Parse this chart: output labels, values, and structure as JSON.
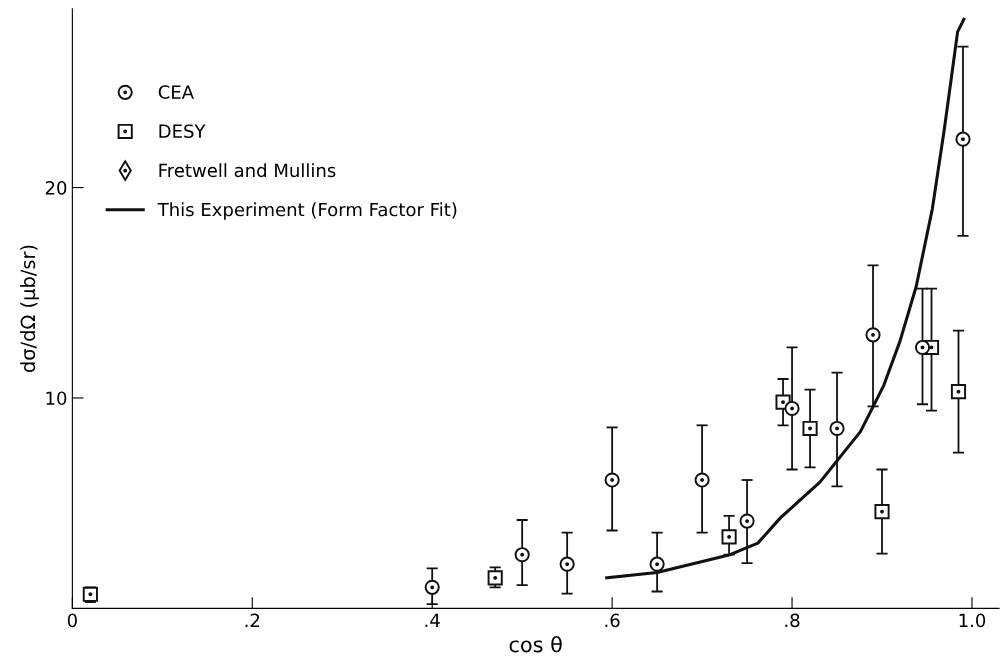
{
  "chart_data": {
    "type": "scatter",
    "xlabel": "cos θ",
    "ylabel": "dσ/dΩ (μb/sr)",
    "xlim": [
      0,
      1.03
    ],
    "ylim": [
      0,
      28.5
    ],
    "xticks": [
      0,
      {
        "value": 0.2,
        "label": ".2"
      },
      {
        "value": 0.4,
        "label": ".4"
      },
      {
        "value": 0.6,
        "label": ".6"
      },
      {
        "value": 0.8,
        "label": ".8"
      },
      {
        "value": 1.0,
        "label": "1.0"
      }
    ],
    "yticks": [
      10,
      20
    ],
    "grid": false,
    "legend": "top left",
    "series": [
      {
        "name": "CEA",
        "marker": "circle",
        "color": "#111111",
        "x": [
          0.4,
          0.5,
          0.55,
          0.6,
          0.65,
          0.7,
          0.75,
          0.8,
          0.85,
          0.89,
          0.945,
          0.99
        ],
        "values": [
          1.0,
          2.55,
          2.1,
          6.1,
          2.1,
          6.1,
          4.15,
          9.5,
          8.55,
          13.0,
          12.4,
          22.3
        ],
        "errors": [
          [
            0.2,
            1.9
          ],
          [
            1.1,
            4.2
          ],
          [
            0.7,
            3.6
          ],
          [
            3.7,
            8.6
          ],
          [
            0.8,
            3.6
          ],
          [
            3.6,
            8.7
          ],
          [
            2.15,
            6.1
          ],
          [
            6.6,
            12.4
          ],
          [
            5.8,
            11.2
          ],
          [
            9.6,
            16.3
          ],
          [
            9.7,
            15.2
          ],
          [
            17.7,
            26.7
          ]
        ]
      },
      {
        "name": "DESY",
        "marker": "square",
        "color": "#111111",
        "x": [
          0.02,
          0.47,
          0.73,
          0.79,
          0.82,
          0.9,
          0.955,
          0.985
        ],
        "values": [
          0.67,
          1.45,
          3.4,
          9.8,
          8.55,
          4.6,
          12.4,
          10.3
        ],
        "errors": [
          [
            0.3,
            1.0
          ],
          [
            1.0,
            1.95
          ],
          [
            2.55,
            4.4
          ],
          [
            8.7,
            10.9
          ],
          [
            6.7,
            10.4
          ],
          [
            2.6,
            6.6
          ],
          [
            9.4,
            15.2
          ],
          [
            7.4,
            13.2
          ]
        ]
      },
      {
        "name": "Fretwell and Mullins",
        "marker": "diamond",
        "color": "#111111"
      },
      {
        "name": "This Experiment (Form Factor Fit)",
        "type": "line",
        "marker": "none",
        "line_style": "solid",
        "color": "#111111",
        "x": [
          0.594,
          0.65,
          0.731,
          0.762,
          0.787,
          0.831,
          0.876,
          0.902,
          0.92,
          0.938,
          0.956,
          0.969,
          0.978,
          0.984,
          0.991
        ],
        "values": [
          1.45,
          1.7,
          2.55,
          3.1,
          4.3,
          6.0,
          8.4,
          10.6,
          12.7,
          15.3,
          19.0,
          22.7,
          25.5,
          27.4,
          28.0
        ]
      }
    ]
  }
}
